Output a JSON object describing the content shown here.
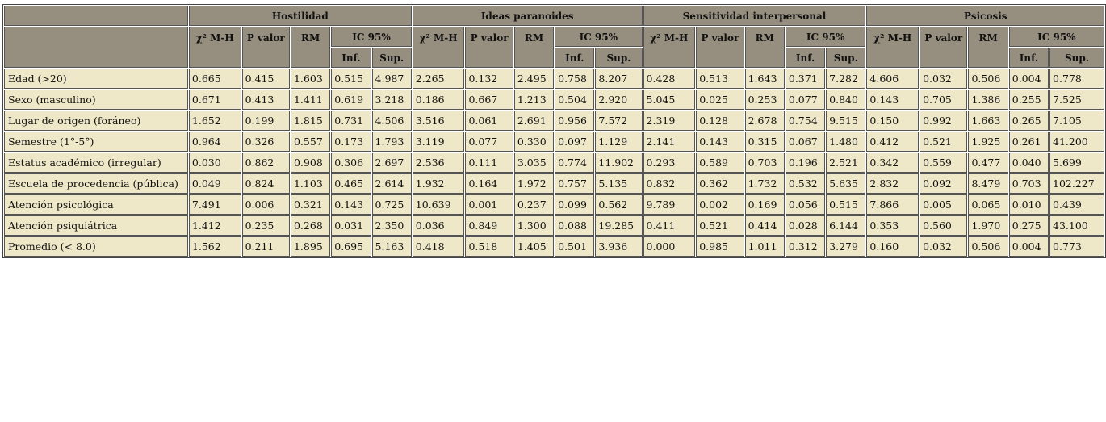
{
  "table": {
    "corner": "",
    "groups": [
      "Hostilidad",
      "Ideas paranoides",
      "Sensitividad interpersonal",
      "Psicosis"
    ],
    "subheaders": [
      "χ² M-H",
      "P valor",
      "RM",
      "IC 95%"
    ],
    "ci": [
      "Inf.",
      "Sup."
    ],
    "rows": [
      {
        "label": "Edad (>20)",
        "values": [
          "0.665",
          "0.415",
          "1.603",
          "0.515",
          "4.987",
          "2.265",
          "0.132",
          "2.495",
          "0.758",
          "8.207",
          "0.428",
          "0.513",
          "1.643",
          "0.371",
          "7.282",
          "4.606",
          "0.032",
          "0.506",
          "0.004",
          "0.778"
        ]
      },
      {
        "label": "Sexo (masculino)",
        "values": [
          "0.671",
          "0.413",
          "1.411",
          "0.619",
          "3.218",
          "0.186",
          "0.667",
          "1.213",
          "0.504",
          "2.920",
          "5.045",
          "0.025",
          "0.253",
          "0.077",
          "0.840",
          "0.143",
          "0.705",
          "1.386",
          "0.255",
          "7.525"
        ]
      },
      {
        "label": "Lugar de origen (foráneo)",
        "values": [
          "1.652",
          "0.199",
          "1.815",
          "0.731",
          "4.506",
          "3.516",
          "0.061",
          "2.691",
          "0.956",
          "7.572",
          "2.319",
          "0.128",
          "2.678",
          "0.754",
          "9.515",
          "0.150",
          "0.992",
          "1.663",
          "0.265",
          "7.105"
        ]
      },
      {
        "label": "Semestre (1°-5°)",
        "values": [
          "0.964",
          "0.326",
          "0.557",
          "0.173",
          "1.793",
          "3.119",
          "0.077",
          "0.330",
          "0.097",
          "1.129",
          "2.141",
          "0.143",
          "0.315",
          "0.067",
          "1.480",
          "0.412",
          "0.521",
          "1.925",
          "0.261",
          "41.200"
        ]
      },
      {
        "label": "Estatus académico (irregular)",
        "values": [
          "0.030",
          "0.862",
          "0.908",
          "0.306",
          "2.697",
          "2.536",
          "0.111",
          "3.035",
          "0.774",
          "11.902",
          "0.293",
          "0.589",
          "0.703",
          "0.196",
          "2.521",
          "0.342",
          "0.559",
          "0.477",
          "0.040",
          "5.699"
        ]
      },
      {
        "label": "Escuela de procedencia (pública)",
        "values": [
          "0.049",
          "0.824",
          "1.103",
          "0.465",
          "2.614",
          "1.932",
          "0.164",
          "1.972",
          "0.757",
          "5.135",
          "0.832",
          "0.362",
          "1.732",
          "0.532",
          "5.635",
          "2.832",
          "0.092",
          "8.479",
          "0.703",
          "102.227"
        ]
      },
      {
        "label": "Atención psicológica",
        "values": [
          "7.491",
          "0.006",
          "0.321",
          "0.143",
          "0.725",
          "10.639",
          "0.001",
          "0.237",
          "0.099",
          "0.562",
          "9.789",
          "0.002",
          "0.169",
          "0.056",
          "0.515",
          "7.866",
          "0.005",
          "0.065",
          "0.010",
          "0.439"
        ]
      },
      {
        "label": "Atención psiquiátrica",
        "values": [
          "1.412",
          "0.235",
          "0.268",
          "0.031",
          "2.350",
          "0.036",
          "0.849",
          "1.300",
          "0.088",
          "19.285",
          "0.411",
          "0.521",
          "0.414",
          "0.028",
          "6.144",
          "0.353",
          "0.560",
          "1.970",
          "0.275",
          "43.100"
        ]
      },
      {
        "label": "Promedio (< 8.0)",
        "values": [
          "1.562",
          "0.211",
          "1.895",
          "0.695",
          "5.163",
          "0.418",
          "0.518",
          "1.405",
          "0.501",
          "3.936",
          "0.000",
          "0.985",
          "1.011",
          "0.312",
          "3.279",
          "0.160",
          "0.032",
          "0.506",
          "0.004",
          "0.773"
        ]
      }
    ]
  }
}
